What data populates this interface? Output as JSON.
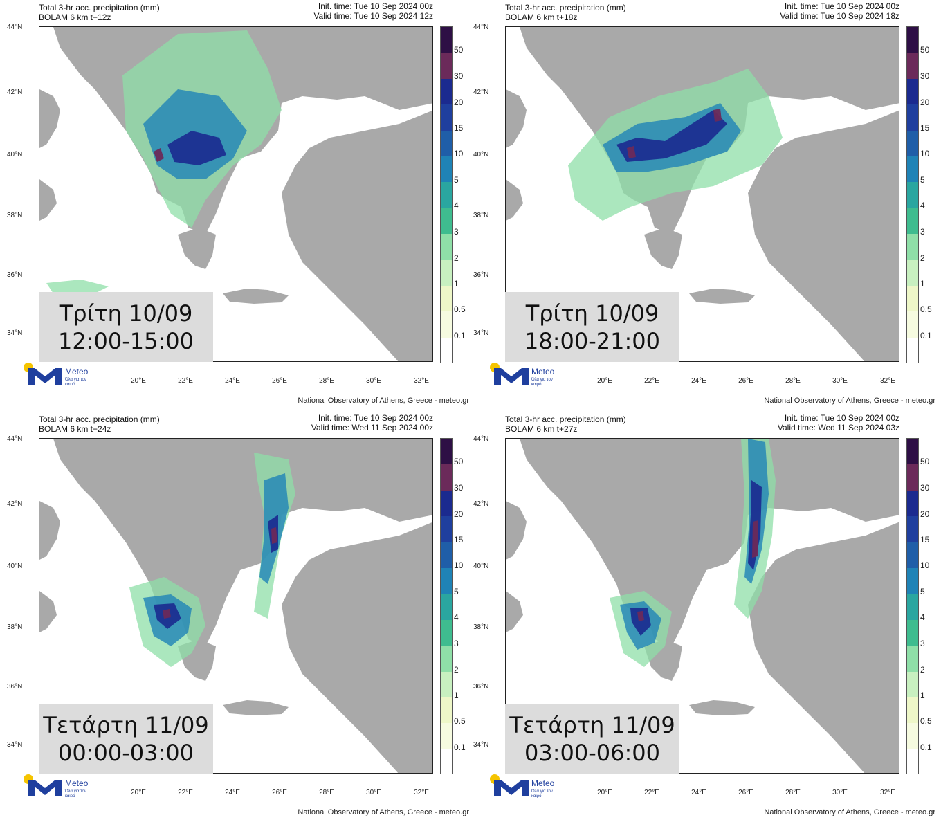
{
  "panels": [
    {
      "title_line1": "Total 3-hr acc. precipitation (mm)",
      "title_line2": "BOLAM 6 km t+12z",
      "init_time": "Init. time: Tue 10 Sep 2024 00z",
      "valid_time": "Valid time: Tue 10 Sep 2024 12z",
      "day_label": "Τρίτη 10/09",
      "time_range": "12:00-15:00"
    },
    {
      "title_line1": "Total 3-hr acc. precipitation (mm)",
      "title_line2": "BOLAM 6 km t+18z",
      "init_time": "Init. time: Tue 10 Sep 2024 00z",
      "valid_time": "Valid time: Tue 10 Sep 2024 18z",
      "day_label": "Τρίτη 10/09",
      "time_range": "18:00-21:00"
    },
    {
      "title_line1": "Total 3-hr acc. precipitation (mm)",
      "title_line2": "BOLAM 6 km t+24z",
      "init_time": "Init. time: Tue 10 Sep 2024 00z",
      "valid_time": "Valid time: Wed 11 Sep 2024 00z",
      "day_label": "Τετάρτη 11/09",
      "time_range": "00:00-03:00"
    },
    {
      "title_line1": "Total 3-hr acc. precipitation (mm)",
      "title_line2": "BOLAM 6 km t+27z",
      "init_time": "Init. time: Tue 10 Sep 2024 00z",
      "valid_time": "Valid time: Wed 11 Sep 2024 03z",
      "day_label": "Τετάρτη 11/09",
      "time_range": "03:00-06:00"
    }
  ],
  "lat_labels": [
    "44°N",
    "42°N",
    "40°N",
    "38°N",
    "36°N",
    "34°N"
  ],
  "lon_labels": [
    "20°E",
    "22°E",
    "24°E",
    "26°E",
    "28°E",
    "30°E",
    "32°E"
  ],
  "colorbar": {
    "labels": [
      "50",
      "30",
      "20",
      "15",
      "10",
      "5",
      "4",
      "3",
      "2",
      "1",
      "0.5",
      "0.1"
    ],
    "colors": [
      "#2e0f45",
      "#6b2a5a",
      "#1b2a8f",
      "#1f3f9e",
      "#1f5ea8",
      "#1f83b6",
      "#2aa6a0",
      "#3fbc8f",
      "#8fdfa8",
      "#c8f0c0",
      "#eef7c8",
      "#f6fbe0",
      "#ffffff"
    ]
  },
  "land_color": "#a9a9a9",
  "logo": {
    "brand": "Meteo",
    "tagline": "Όλα για τον καιρό"
  },
  "credit": "National Observatory of Athens, Greece - meteo.gr"
}
